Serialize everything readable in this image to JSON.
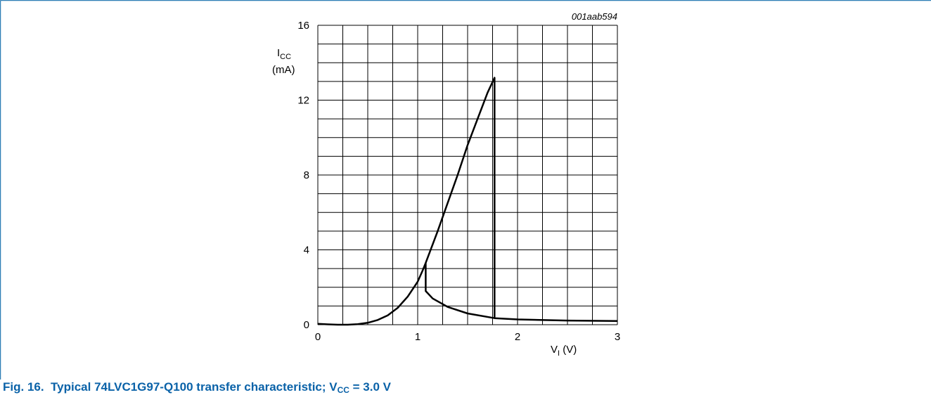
{
  "figure_id": "001aab594",
  "caption": {
    "number": "Fig. 16.",
    "text": "Typical 74LVC1G97-Q100 transfer characteristic; V",
    "sub": "CC",
    "tail": " = 3.0 V"
  },
  "colors": {
    "frame": "#2f7fb6",
    "caption": "#0a62a8",
    "curve": "#000000",
    "grid": "#000000"
  },
  "chart_data": {
    "type": "line",
    "xlim": [
      0,
      3
    ],
    "ylim": [
      0,
      16
    ],
    "grid": true,
    "x_ticks": [
      0,
      1,
      2,
      3
    ],
    "y_ticks": [
      0,
      4,
      8,
      12,
      16
    ],
    "x_minor_step": 0.25,
    "y_minor_step": 1,
    "xlabel": {
      "main": "V",
      "sub": "I",
      "unit": " (V)"
    },
    "ylabel": {
      "main": "I",
      "sub": "CC",
      "unit": "(mA)"
    },
    "series": [
      {
        "values": [
          [
            0.0,
            0.05
          ],
          [
            0.1,
            0.02
          ],
          [
            0.2,
            0.0
          ],
          [
            0.3,
            0.0
          ],
          [
            0.4,
            0.03
          ],
          [
            0.5,
            0.1
          ],
          [
            0.6,
            0.25
          ],
          [
            0.7,
            0.5
          ],
          [
            0.8,
            0.9
          ],
          [
            0.9,
            1.5
          ],
          [
            1.0,
            2.3
          ],
          [
            1.05,
            2.9
          ],
          [
            1.08,
            3.3
          ],
          [
            1.2,
            5.0
          ],
          [
            1.3,
            6.5
          ],
          [
            1.4,
            8.0
          ],
          [
            1.5,
            9.6
          ],
          [
            1.6,
            11.0
          ],
          [
            1.7,
            12.4
          ],
          [
            1.77,
            13.2
          ],
          [
            1.77,
            0.35
          ]
        ]
      },
      {
        "values": [
          [
            1.08,
            3.3
          ],
          [
            1.08,
            1.8
          ],
          [
            1.15,
            1.4
          ],
          [
            1.3,
            0.95
          ],
          [
            1.5,
            0.6
          ],
          [
            1.77,
            0.35
          ],
          [
            2.0,
            0.28
          ],
          [
            2.5,
            0.22
          ],
          [
            3.0,
            0.2
          ]
        ]
      }
    ]
  }
}
